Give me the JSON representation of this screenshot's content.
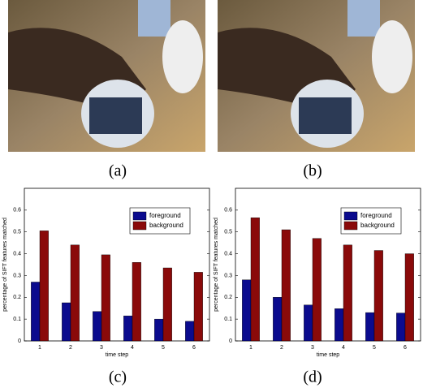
{
  "captions": [
    "(a)",
    "(b)",
    "(c)",
    "(d)"
  ],
  "chart_data": [
    {
      "type": "bar",
      "ylabel": "percentage of SIFT features matched",
      "xlabel": "time step",
      "categories": [
        "1",
        "2",
        "3",
        "4",
        "5",
        "6"
      ],
      "series": [
        {
          "name": "foreground",
          "color": "#0b0b8e",
          "values": [
            0.27,
            0.175,
            0.135,
            0.115,
            0.1,
            0.09
          ]
        },
        {
          "name": "background",
          "color": "#8a0a0a",
          "values": [
            0.505,
            0.44,
            0.395,
            0.36,
            0.335,
            0.315
          ]
        }
      ],
      "ylim": [
        0,
        0.7
      ],
      "yticks": [
        0,
        0.1,
        0.2,
        0.3,
        0.4,
        0.5,
        0.6
      ],
      "legend": "upper right"
    },
    {
      "type": "bar",
      "ylabel": "percentage of SIFT features matched",
      "xlabel": "time step",
      "categories": [
        "1",
        "2",
        "3",
        "4",
        "5",
        "6"
      ],
      "series": [
        {
          "name": "foreground",
          "color": "#0b0b8e",
          "values": [
            0.28,
            0.2,
            0.165,
            0.148,
            0.13,
            0.128
          ]
        },
        {
          "name": "background",
          "color": "#8a0a0a",
          "values": [
            0.565,
            0.51,
            0.47,
            0.44,
            0.415,
            0.4
          ]
        }
      ],
      "ylim": [
        0,
        0.7
      ],
      "yticks": [
        0,
        0.1,
        0.2,
        0.3,
        0.4,
        0.5,
        0.6
      ],
      "legend": "upper right"
    }
  ]
}
